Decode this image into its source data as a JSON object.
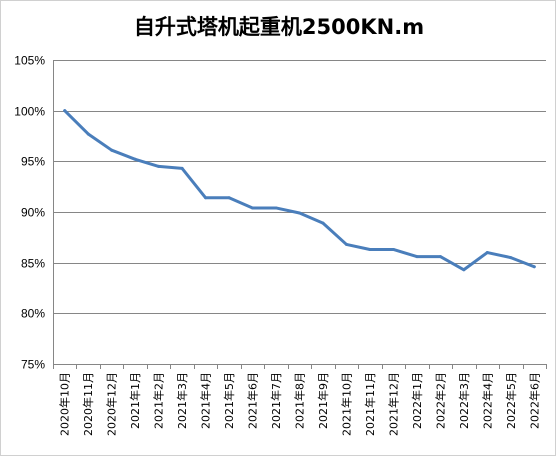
{
  "chart_data": {
    "type": "line",
    "title": "自升式塔机起重机2500KN.m",
    "xlabel": "",
    "ylabel": "",
    "categories": [
      "2020年10月",
      "2020年11月",
      "2020年12月",
      "2021年1月",
      "2021年2月",
      "2021年3月",
      "2021年4月",
      "2021年5月",
      "2021年6月",
      "2021年7月",
      "2021年8月",
      "2021年9月",
      "2021年10月",
      "2021年11月",
      "2021年12月",
      "2022年1月",
      "2022年2月",
      "2022年3月",
      "2022年4月",
      "2022年5月",
      "2022年6月"
    ],
    "series": [
      {
        "values": [
          100.0,
          97.7,
          96.1,
          95.2,
          94.5,
          94.3,
          91.4,
          91.4,
          90.4,
          90.4,
          89.9,
          88.9,
          86.8,
          86.3,
          86.3,
          85.6,
          85.6,
          84.3,
          86.0,
          85.5,
          84.6
        ]
      }
    ],
    "y_ticks": [
      "75%",
      "80%",
      "85%",
      "90%",
      "95%",
      "100%",
      "105%"
    ],
    "ylim": [
      75,
      105
    ],
    "y_format": "percent",
    "grid": true,
    "legend": "none",
    "colors": {
      "line": "#4a7ebb",
      "grid": "#868686",
      "axis": "#868686"
    }
  }
}
